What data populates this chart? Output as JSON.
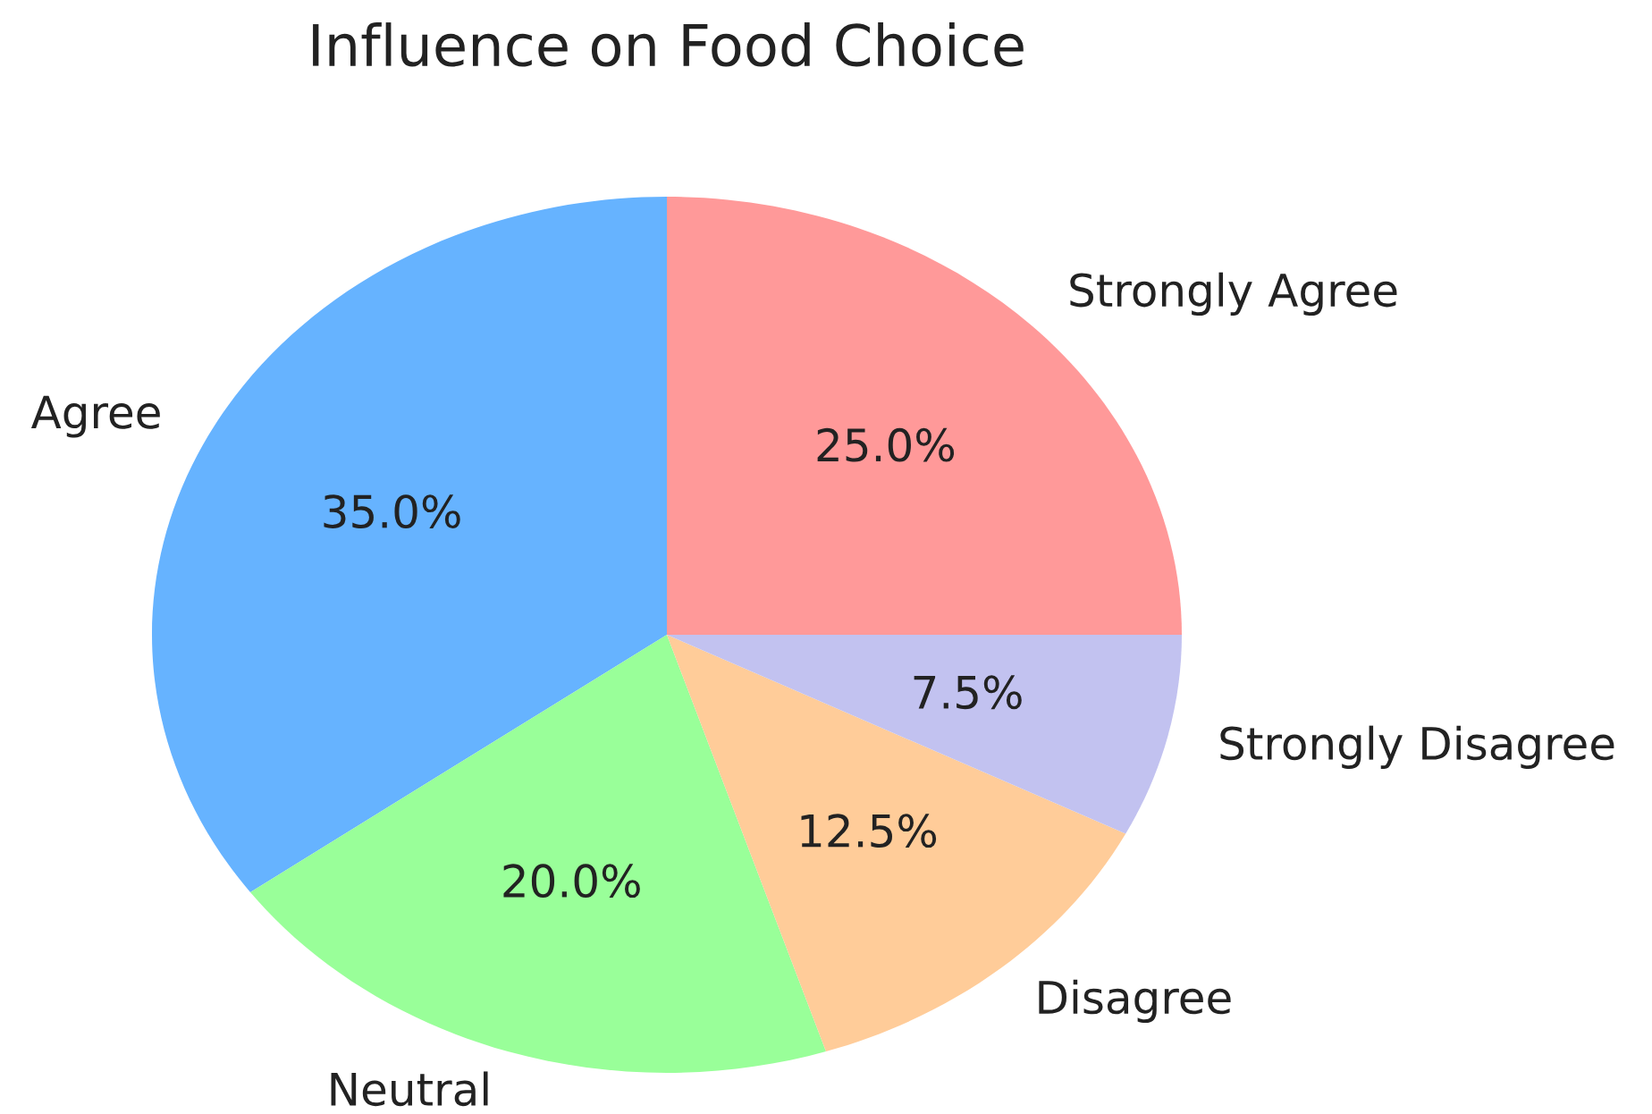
{
  "chart_data": {
    "type": "pie",
    "title": "Influence on Food Choice",
    "categories": [
      "Strongly Agree",
      "Agree",
      "Neutral",
      "Disagree",
      "Strongly Disagree"
    ],
    "values": [
      25,
      35,
      20,
      12.5,
      7.5
    ],
    "colors": [
      "#ff9999",
      "#66b3ff",
      "#99ff99",
      "#ffcc99",
      "#c2c2f0"
    ],
    "value_labels": [
      "25.0%",
      "35.0%",
      "20.0%",
      "12.5%",
      "7.5%"
    ]
  }
}
